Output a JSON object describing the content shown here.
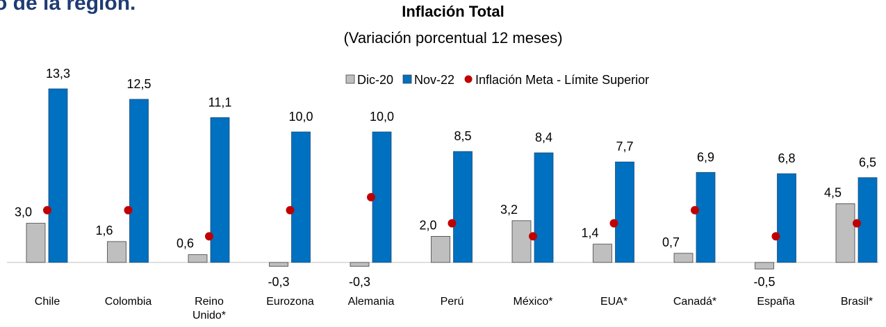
{
  "heading": "o de la región.",
  "chart_data": {
    "type": "bar",
    "title": "Inflación Total",
    "subtitle": "(Variación porcentual 12 meses)",
    "categories": [
      "Chile",
      "Colombia",
      "Reino Unido*",
      "Eurozona",
      "Alemania",
      "Perú",
      "México*",
      "EUA*",
      "Canadá*",
      "España",
      "Brasil*"
    ],
    "series": [
      {
        "name": "Dic-20",
        "color": "#bfbfbf",
        "values": [
          3.0,
          1.6,
          0.6,
          -0.3,
          -0.3,
          2.0,
          3.2,
          1.4,
          0.7,
          -0.5,
          4.5
        ],
        "value_labels": [
          "3,0",
          "1,6",
          "0,6",
          "-0,3",
          "-0,3",
          "2,0",
          "3,2",
          "1,4",
          "0,7",
          "-0,5",
          "4,5"
        ]
      },
      {
        "name": "Nov-22",
        "color": "#0070c0",
        "values": [
          13.3,
          12.5,
          11.1,
          10.0,
          10.0,
          8.5,
          8.4,
          7.7,
          6.9,
          6.8,
          6.5
        ],
        "value_labels": [
          "13,3",
          "12,5",
          "11,1",
          "10,0",
          "10,0",
          "8,5",
          "8,4",
          "7,7",
          "6,9",
          "6,8",
          "6,5"
        ]
      },
      {
        "name": "Inflación Meta - Límite Superior",
        "color": "#c00000",
        "marker": "dot",
        "values": [
          4,
          4,
          2,
          4,
          5,
          3,
          2,
          3,
          4,
          2,
          3
        ]
      }
    ]
  }
}
